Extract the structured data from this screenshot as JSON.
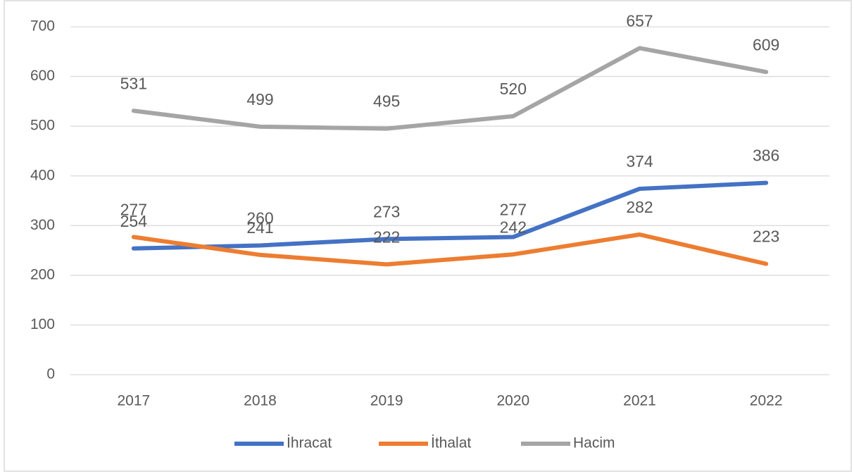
{
  "chart_data": {
    "type": "line",
    "categories": [
      "2017",
      "2018",
      "2019",
      "2020",
      "2021",
      "2022"
    ],
    "series": [
      {
        "name": "İhracat",
        "color": "#4472c4",
        "values": [
          254,
          260,
          273,
          277,
          374,
          386
        ]
      },
      {
        "name": "İthalat",
        "color": "#ed7d31",
        "values": [
          277,
          241,
          222,
          242,
          282,
          223
        ]
      },
      {
        "name": "Hacim",
        "color": "#a5a5a5",
        "values": [
          531,
          499,
          495,
          520,
          657,
          609
        ]
      }
    ],
    "ylim": [
      0,
      700
    ],
    "yticks": [
      0,
      100,
      200,
      300,
      400,
      500,
      600,
      700
    ],
    "grid": true,
    "legend": "bottom"
  }
}
